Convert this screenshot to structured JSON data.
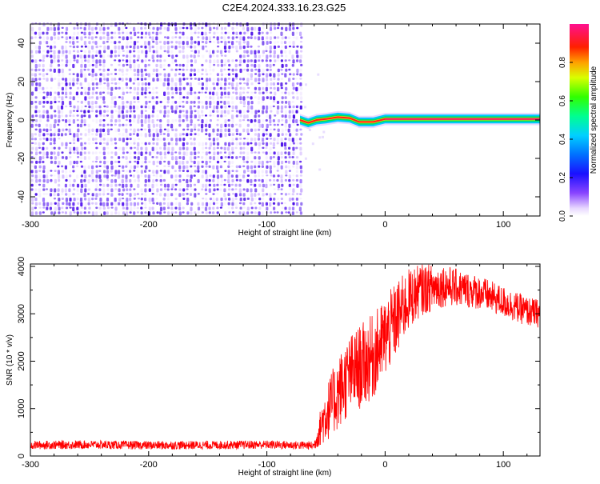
{
  "figure_title": "C2E4.2024.333.16.23.G25",
  "chart_data": [
    {
      "type": "heatmap",
      "xlabel": "Height of straight line (km)",
      "ylabel": "Frequency (Hz)",
      "xlim": [
        -300,
        131
      ],
      "ylim": [
        -50,
        50
      ],
      "x_ticks": [
        -300,
        -200,
        -100,
        0,
        100
      ],
      "y_ticks": [
        -40,
        -20,
        0,
        20,
        40
      ],
      "colorbar": {
        "label": "Normalized spectral amplitude",
        "range": [
          0,
          1
        ],
        "ticks": [
          "0.0",
          "0.2",
          "0.4",
          "0.6",
          "0.8"
        ]
      },
      "noise_region": {
        "x_range": [
          -300,
          -72
        ],
        "freq_range": [
          -50,
          50
        ],
        "amplitude_range": [
          0.0,
          0.2
        ]
      },
      "signal_track": [
        {
          "x": -72,
          "freq": 0.0,
          "amplitude": 0.45
        },
        {
          "x": -65,
          "freq": -1.5,
          "amplitude": 0.6
        },
        {
          "x": -58,
          "freq": 0.0,
          "amplitude": 0.7
        },
        {
          "x": -50,
          "freq": 0.5,
          "amplitude": 0.75
        },
        {
          "x": -40,
          "freq": 1.5,
          "amplitude": 0.8
        },
        {
          "x": -30,
          "freq": 1.0,
          "amplitude": 0.85
        },
        {
          "x": -22,
          "freq": -1.0,
          "amplitude": 0.85
        },
        {
          "x": -10,
          "freq": -1.0,
          "amplitude": 0.9
        },
        {
          "x": 0,
          "freq": 0.5,
          "amplitude": 0.95
        },
        {
          "x": 131,
          "freq": 0.5,
          "amplitude": 1.0
        }
      ]
    },
    {
      "type": "line",
      "xlabel": "Height of straight line (km)",
      "ylabel": "SNR (10 * v/v)",
      "xlim": [
        -300,
        131
      ],
      "ylim": [
        0,
        4050
      ],
      "x_ticks": [
        -300,
        -200,
        -100,
        0,
        100
      ],
      "y_ticks": [
        0,
        1000,
        2000,
        3000,
        4000
      ],
      "series": [
        {
          "color": "#ff0000",
          "x": [
            -300,
            -250,
            -200,
            -150,
            -100,
            -60,
            -52,
            -45,
            -38,
            -30,
            -20,
            -10,
            0,
            10,
            20,
            30,
            40,
            50,
            60,
            70,
            80,
            90,
            100,
            110,
            120,
            131
          ],
          "values": [
            230,
            240,
            225,
            230,
            240,
            220,
            800,
            1100,
            1400,
            1700,
            1900,
            2100,
            2500,
            2900,
            3300,
            3500,
            3550,
            3600,
            3550,
            3500,
            3450,
            3350,
            3250,
            3150,
            3050,
            3000
          ],
          "spread": [
            90,
            90,
            90,
            90,
            90,
            90,
            550,
            700,
            800,
            850,
            900,
            900,
            850,
            800,
            650,
            550,
            500,
            450,
            400,
            380,
            360,
            340,
            330,
            320,
            310,
            300
          ]
        }
      ]
    }
  ]
}
